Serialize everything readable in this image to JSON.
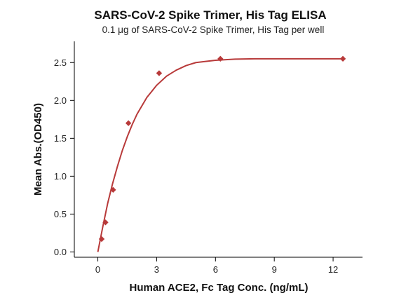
{
  "chart_data": {
    "type": "scatter",
    "title": "SARS-CoV-2 Spike Trimer, His Tag ELISA",
    "subtitle": "0.1 μg of SARS-CoV-2 Spike Trimer, His Tag per well",
    "xlabel": "Human ACE2, Fc Tag Conc. (ng/mL)",
    "ylabel": "Mean Abs.(OD450)",
    "xlim": [
      -1.2,
      13.5
    ],
    "ylim": [
      -0.07,
      2.78
    ],
    "xticks": [
      0,
      3,
      6,
      9,
      12
    ],
    "xtick_labels": [
      "0",
      "3",
      "6",
      "9",
      "12"
    ],
    "yticks": [
      0.0,
      0.5,
      1.0,
      1.5,
      2.0,
      2.5
    ],
    "ytick_labels": [
      "0.0",
      "0.5",
      "1.0",
      "1.5",
      "2.0",
      "2.5"
    ],
    "grid": false,
    "color": "#b83a3a",
    "series": [
      {
        "x": [
          0.195,
          0.39,
          0.78,
          1.56,
          3.125,
          6.25,
          12.5
        ],
        "y": [
          0.17,
          0.39,
          0.82,
          1.7,
          2.36,
          2.55,
          2.55
        ]
      }
    ],
    "fit": {
      "type": "curve",
      "x": [
        0,
        0.25,
        0.5,
        0.75,
        1.0,
        1.25,
        1.5,
        1.75,
        2.0,
        2.5,
        3.0,
        3.5,
        4.0,
        4.5,
        5.0,
        6.0,
        7.0,
        8.0,
        10.0,
        12.5
      ],
      "y": [
        0.0,
        0.33,
        0.64,
        0.9,
        1.13,
        1.34,
        1.52,
        1.68,
        1.82,
        2.04,
        2.2,
        2.32,
        2.4,
        2.46,
        2.5,
        2.53,
        2.545,
        2.55,
        2.55,
        2.55
      ]
    }
  }
}
